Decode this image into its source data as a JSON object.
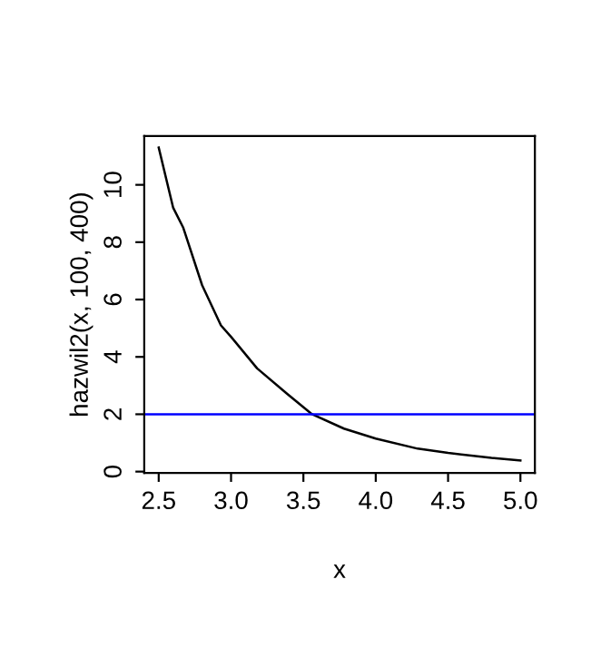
{
  "chart_data": {
    "type": "line",
    "xlabel": "x",
    "ylabel": "hazwil2(x, 100, 400)",
    "series": [
      {
        "color": "#000000",
        "x": [
          2.5,
          2.6,
          2.67,
          2.8,
          2.93,
          3.0,
          3.18,
          3.39,
          3.56,
          3.78,
          4.0,
          4.29,
          4.5,
          4.8,
          5.0
        ],
        "values": [
          11.3,
          9.2,
          8.5,
          6.5,
          5.1,
          4.7,
          3.6,
          2.7,
          2.0,
          1.5,
          1.15,
          0.8,
          0.65,
          0.48,
          0.39
        ]
      }
    ],
    "ref_lines": [
      {
        "axis": "y",
        "value": 2,
        "color": "#0000ff"
      }
    ],
    "xlim": [
      2.4,
      5.1
    ],
    "ylim": [
      -0.05,
      11.7
    ],
    "xticks": [
      2.5,
      {
        "value": 3,
        "label": "3.0"
      },
      3.5,
      {
        "value": 4,
        "label": "4.0"
      },
      4.5,
      {
        "value": 5,
        "label": "5.0"
      }
    ],
    "yticks": [
      0,
      2,
      4,
      6,
      8,
      10
    ],
    "grid": false,
    "legend": false
  }
}
